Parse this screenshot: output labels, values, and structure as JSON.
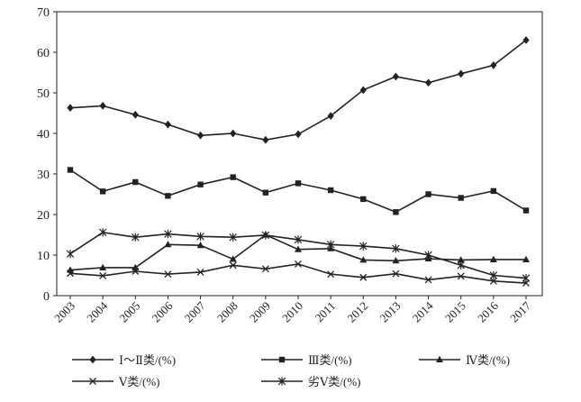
{
  "chart_data": {
    "type": "line",
    "title": "",
    "xlabel": "",
    "ylabel": "",
    "x": [
      "2003",
      "2004",
      "2005",
      "2006",
      "2007",
      "2008",
      "2009",
      "2010",
      "2011",
      "2012",
      "2013",
      "2014",
      "2015",
      "2016",
      "2017"
    ],
    "ylim": [
      0,
      70
    ],
    "yticks": [
      0,
      10,
      20,
      30,
      40,
      50,
      60,
      70
    ],
    "grid": false,
    "legend_position": "bottom",
    "series": [
      {
        "name": "Ⅰ～Ⅱ类/(%)",
        "marker": "diamond",
        "values": [
          46.3,
          46.8,
          44.6,
          42.2,
          39.5,
          40.0,
          38.4,
          39.8,
          44.3,
          50.7,
          54.0,
          52.5,
          54.7,
          56.8,
          63.0
        ]
      },
      {
        "name": "Ⅲ类/(%)",
        "marker": "square",
        "values": [
          31.0,
          25.7,
          28.0,
          24.6,
          27.4,
          29.2,
          25.4,
          27.7,
          26.0,
          23.8,
          20.6,
          25.0,
          24.1,
          25.8,
          21.0
        ]
      },
      {
        "name": "Ⅳ类/(%)",
        "marker": "triangle",
        "values": [
          6.3,
          6.9,
          6.9,
          12.6,
          12.4,
          9.0,
          15.0,
          11.4,
          11.6,
          8.8,
          8.6,
          9.1,
          8.8,
          8.9,
          8.9
        ]
      },
      {
        "name": "Ⅴ类/(%)",
        "marker": "x",
        "values": [
          5.5,
          4.9,
          6.0,
          5.3,
          5.8,
          7.5,
          6.6,
          7.8,
          5.3,
          4.5,
          5.4,
          3.9,
          4.8,
          3.6,
          3.1
        ]
      },
      {
        "name": "劣Ⅴ类/(%)",
        "marker": "star",
        "values": [
          10.3,
          15.6,
          14.4,
          15.2,
          14.6,
          14.4,
          14.9,
          13.8,
          12.6,
          12.2,
          11.6,
          10.0,
          7.5,
          5.0,
          4.3
        ]
      }
    ]
  }
}
